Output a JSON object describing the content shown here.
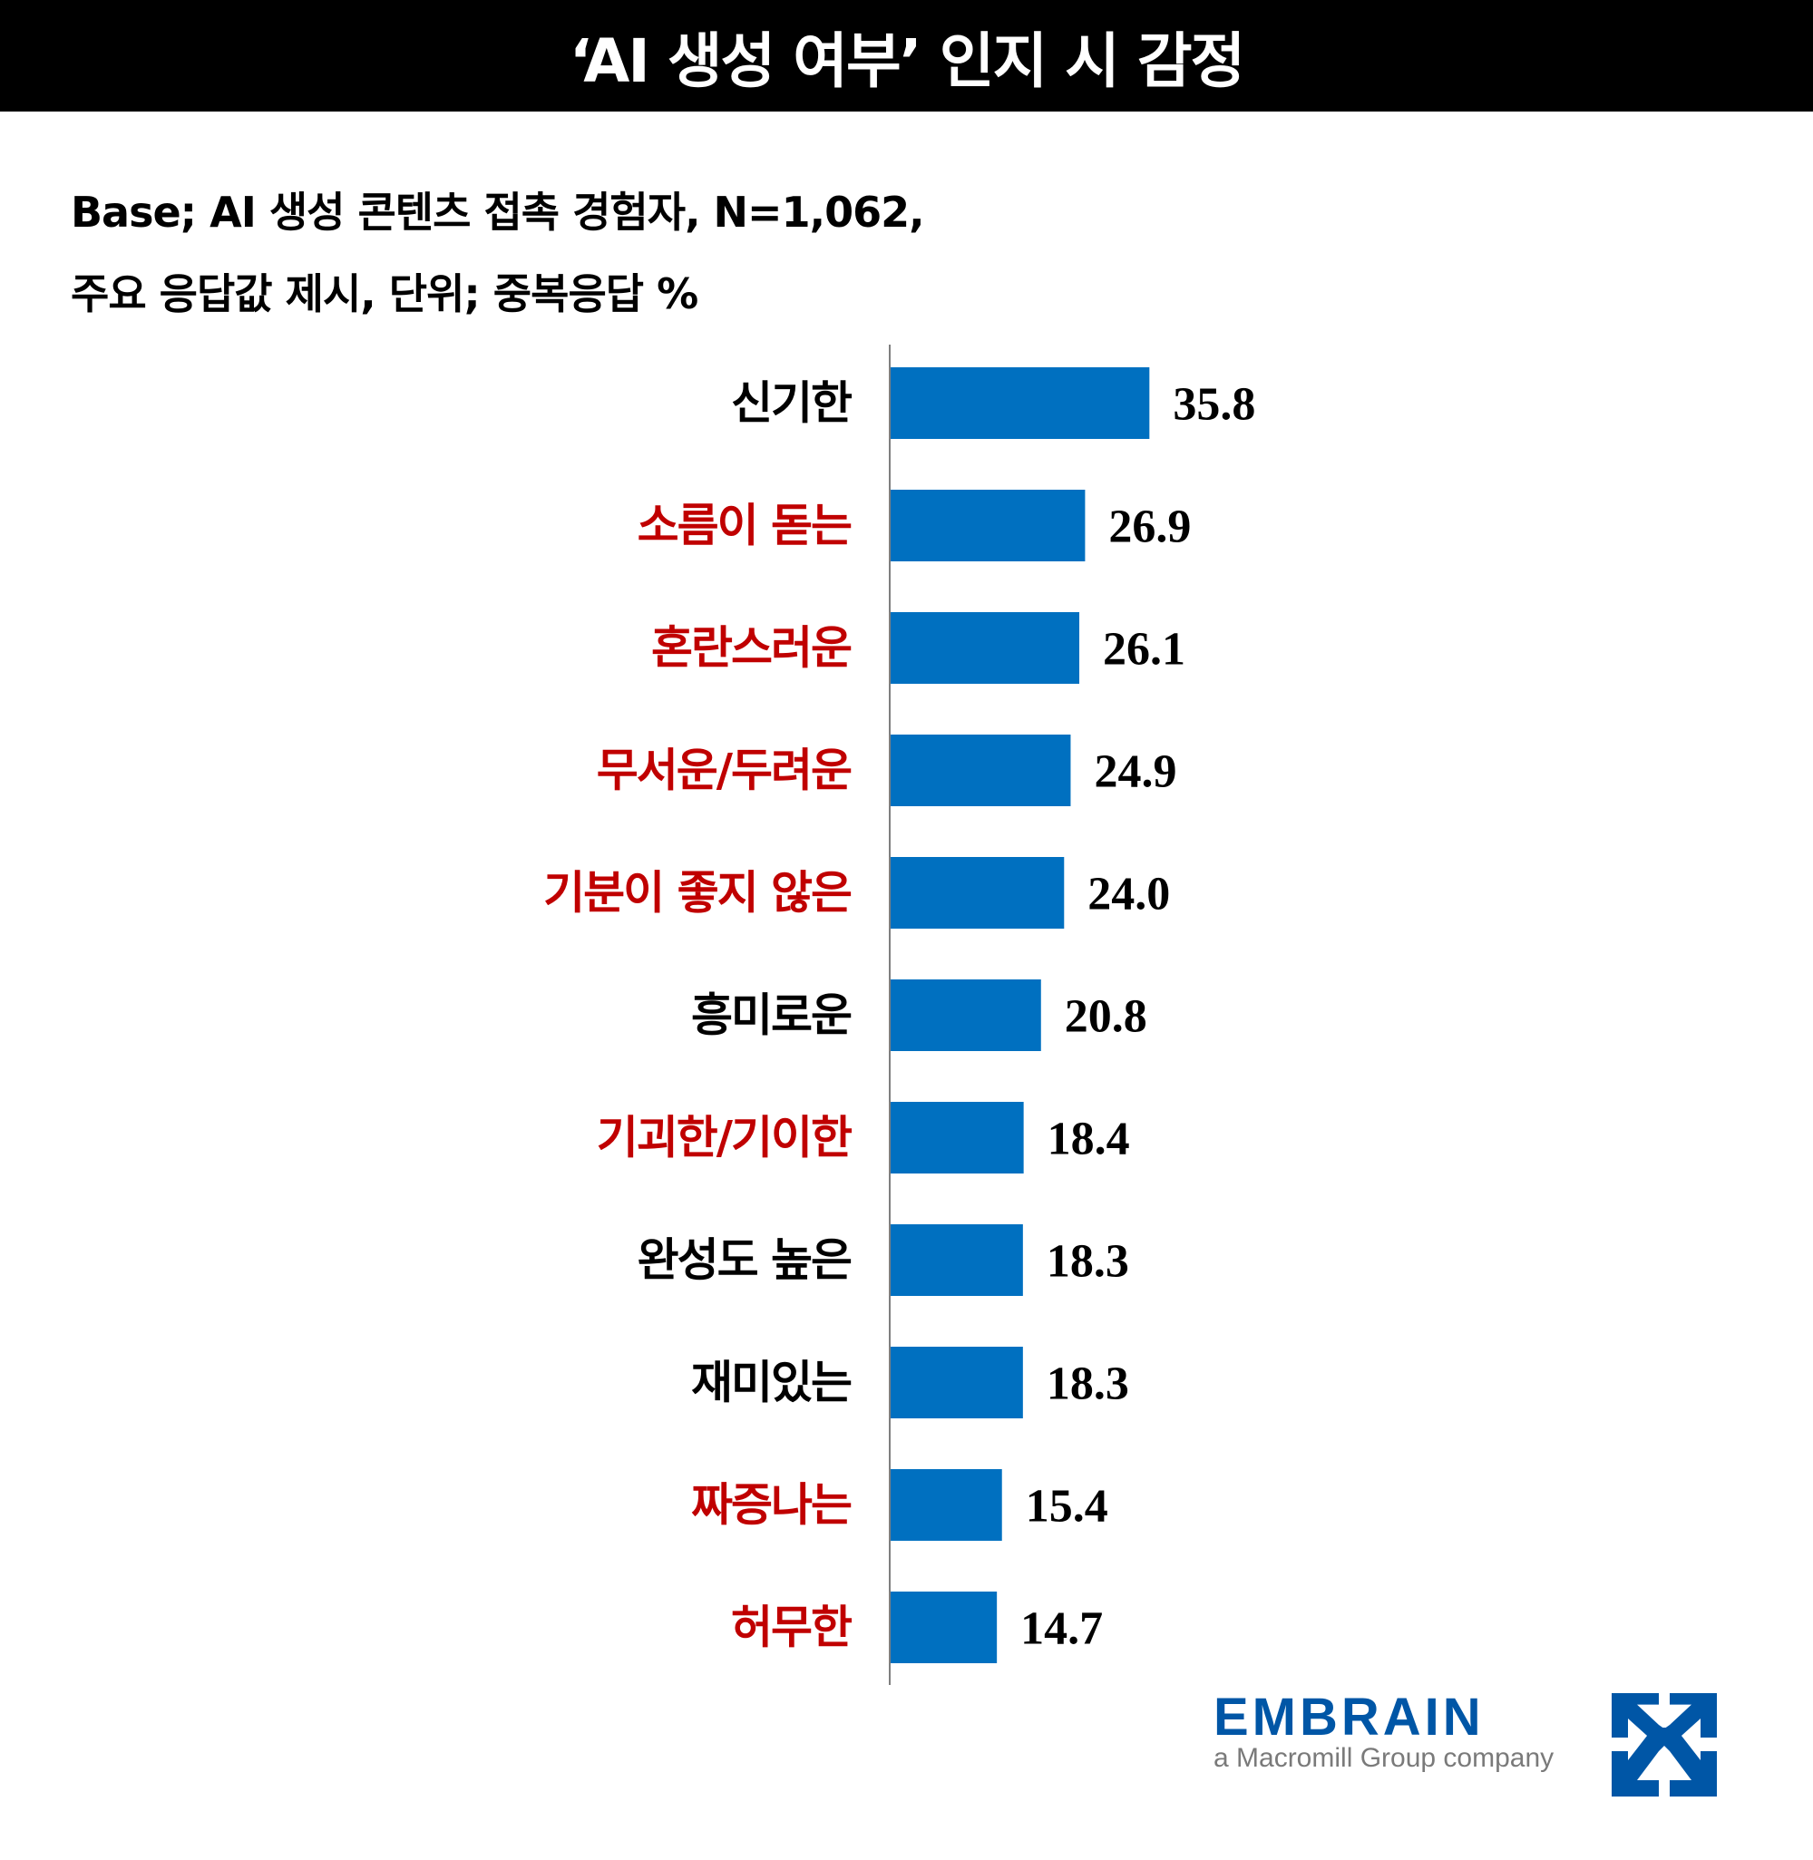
{
  "header": {
    "title": "‘AI 생성 여부’ 인지 시 감정"
  },
  "subtitle": {
    "line1": "Base; AI 생성 콘텐츠 접촉 경험자, N=1,062,",
    "line2": "주요 응답값 제시, 단위; 중복응답 %"
  },
  "chart_data": {
    "type": "bar",
    "orientation": "horizontal",
    "title": "‘AI 생성 여부’ 인지 시 감정",
    "categories": [
      "신기한",
      "소름이 돋는",
      "혼란스러운",
      "무서운/두려운",
      "기분이 좋지 않은",
      "흥미로운",
      "기괴한/기이한",
      "완성도 높은",
      "재미있는",
      "짜증나는",
      "허무한"
    ],
    "values": [
      35.8,
      26.9,
      26.1,
      24.9,
      24.0,
      20.8,
      18.4,
      18.3,
      18.3,
      15.4,
      14.7
    ],
    "value_labels": [
      "35.8",
      "26.9",
      "26.1",
      "24.9",
      "24.0",
      "20.8",
      "18.4",
      "18.3",
      "18.3",
      "15.4",
      "14.7"
    ],
    "negative": [
      false,
      true,
      true,
      true,
      true,
      false,
      true,
      false,
      false,
      true,
      true
    ],
    "xlim": [
      0,
      100
    ],
    "unit": "%",
    "grid": false,
    "colors": {
      "bar": "#0070C0",
      "label_normal": "#000000",
      "label_negative": "#C00000",
      "axis": "#7f7f7f"
    }
  },
  "logo": {
    "name": "EMBRAIN",
    "tagline": "a Macromill Group company",
    "color": "#0056A6"
  }
}
